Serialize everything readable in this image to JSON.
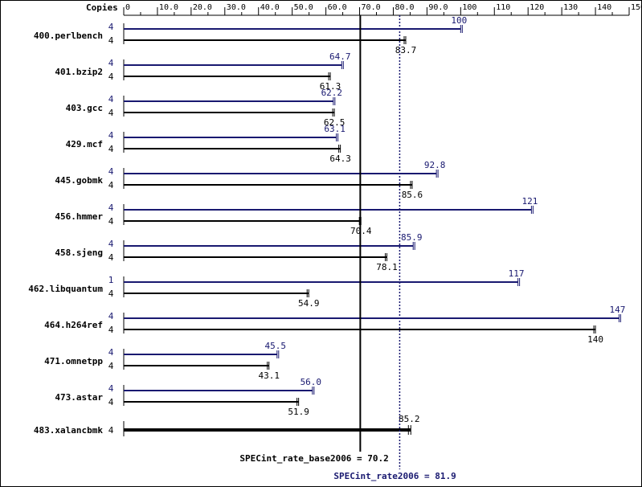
{
  "chart_data": {
    "type": "bar",
    "orientation": "horizontal",
    "copies_header": "Copies",
    "x_ticks": [
      "0",
      "10.0",
      "20.0",
      "30.0",
      "40.0",
      "50.0",
      "60.0",
      "70.0",
      "80.0",
      "90.0",
      "100",
      "110",
      "120",
      "130",
      "140",
      "150"
    ],
    "x_tick_values": [
      0,
      10,
      20,
      30,
      40,
      50,
      60,
      70,
      80,
      90,
      100,
      110,
      120,
      130,
      140,
      150
    ],
    "xlim": [
      0,
      150
    ],
    "categories": [
      "400.perlbench",
      "401.bzip2",
      "403.gcc",
      "429.mcf",
      "445.gobmk",
      "456.hmmer",
      "458.sjeng",
      "462.libquantum",
      "464.h264ref",
      "471.omnetpp",
      "473.astar",
      "483.xalancbmk"
    ],
    "peak_copies": [
      "4",
      "4",
      "4",
      "4",
      "4",
      "4",
      "4",
      "1",
      "4",
      "4",
      "4",
      null
    ],
    "base_copies": [
      "4",
      "4",
      "4",
      "4",
      "4",
      "4",
      "4",
      "4",
      "4",
      "4",
      "4",
      "4"
    ],
    "series": [
      {
        "values": [
          100,
          64.7,
          62.2,
          63.1,
          92.8,
          121,
          85.9,
          117,
          147,
          45.5,
          56.0,
          null
        ],
        "labels": [
          "100",
          "64.7",
          "62.2",
          "63.1",
          "92.8",
          "121",
          "85.9",
          "117",
          "147",
          "45.5",
          "56.0",
          ""
        ]
      },
      {
        "values": [
          83.7,
          61.3,
          62.5,
          64.3,
          85.6,
          70.4,
          78.1,
          54.9,
          140,
          43.1,
          51.9,
          85.2
        ],
        "labels": [
          "83.7",
          "61.3",
          "62.5",
          "64.3",
          "85.6",
          "70.4",
          "78.1",
          "54.9",
          "140",
          "43.1",
          "51.9",
          "85.2"
        ]
      }
    ],
    "reference_lines": [
      {
        "label": "SPECint_rate_base2006 = 70.2",
        "value": 70.2,
        "style": "solid",
        "color": "#000000"
      },
      {
        "label": "SPECint_rate2006 = 81.9",
        "value": 81.9,
        "style": "dotted",
        "color": "#191970"
      }
    ],
    "colors": {
      "peak": "#191970",
      "base": "#000000"
    },
    "grid": false
  }
}
